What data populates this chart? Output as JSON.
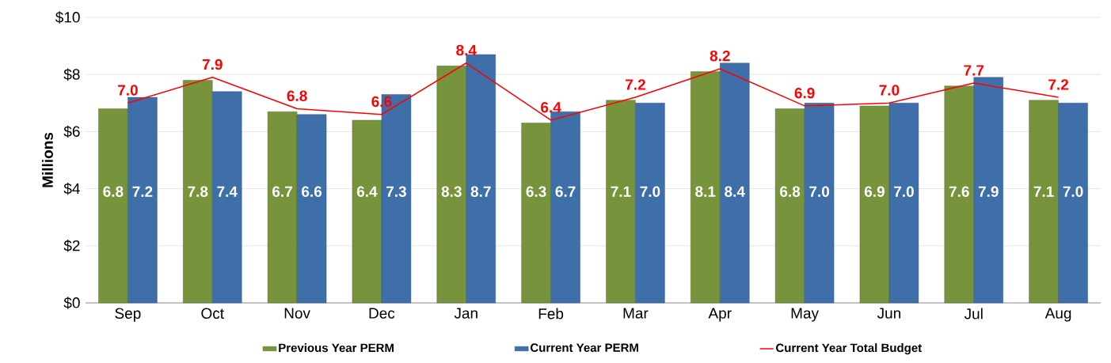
{
  "chart_data": {
    "type": "bar",
    "ylabel": "Millions",
    "categories": [
      "Sep",
      "Oct",
      "Nov",
      "Dec",
      "Jan",
      "Feb",
      "Mar",
      "Apr",
      "May",
      "Jun",
      "Jul",
      "Aug"
    ],
    "series": [
      {
        "name": "Previous Year PERM",
        "color": "#77933c",
        "values": [
          6.8,
          7.8,
          6.7,
          6.4,
          8.3,
          6.3,
          7.1,
          8.1,
          6.8,
          6.9,
          7.6,
          7.1
        ],
        "value_labels": [
          "6.8",
          "7.8",
          "6.7",
          "6.4",
          "8.3",
          "6.3",
          "7.1",
          "8.1",
          "6.8",
          "6.9",
          "7.6",
          "7.1"
        ]
      },
      {
        "name": "Current Year PERM",
        "color": "#3e6fa8",
        "values": [
          7.2,
          7.4,
          6.6,
          7.3,
          8.7,
          6.7,
          7.0,
          8.4,
          7.0,
          7.0,
          7.9,
          7.0
        ],
        "value_labels": [
          "7.2",
          "7.4",
          "6.6",
          "7.3",
          "8.7",
          "6.7",
          "7.0",
          "8.4",
          "7.0",
          "7.0",
          "7.9",
          "7.0"
        ]
      },
      {
        "name": "Current Year Total Budget",
        "type": "line",
        "color": "#ff0000",
        "values": [
          7.0,
          7.9,
          6.8,
          6.6,
          8.4,
          6.4,
          7.2,
          8.2,
          6.9,
          7.0,
          7.7,
          7.2
        ],
        "value_labels": [
          "7.0",
          "7.9",
          "6.8",
          "6.6",
          "8.4",
          "6.4",
          "7.2",
          "8.2",
          "6.9",
          "7.0",
          "7.7",
          "7.2"
        ]
      }
    ],
    "ylim": [
      0,
      10
    ],
    "yticks": [
      {
        "value": 0,
        "label": "$0"
      },
      {
        "value": 2,
        "label": "$2"
      },
      {
        "value": 4,
        "label": "$4"
      },
      {
        "value": 6,
        "label": "$6"
      },
      {
        "value": 8,
        "label": "$8"
      },
      {
        "value": 10,
        "label": "$10"
      }
    ],
    "grid": "y",
    "legend": "bottom"
  }
}
